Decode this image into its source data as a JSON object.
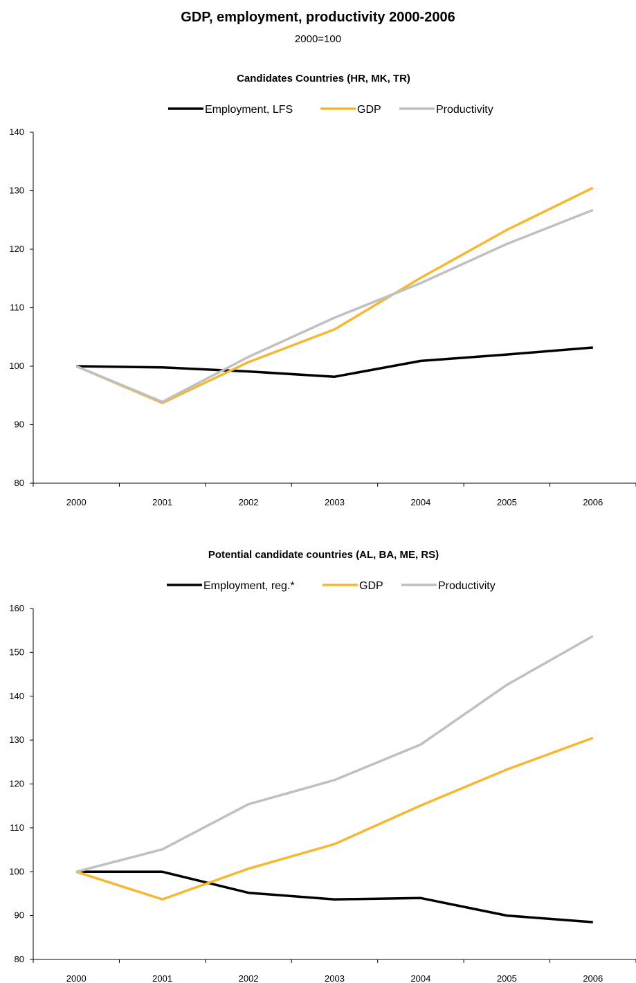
{
  "title": "GDP, employment, productivity 2000-2006",
  "subtitle": "2000=100",
  "colors": {
    "employment": "#000000",
    "gdp": "#f7b731",
    "productivity": "#c0c0c0"
  },
  "chart_data": [
    {
      "type": "line",
      "title": "Candidates Countries (HR, MK, TR)",
      "x": [
        "2000",
        "2001",
        "2002",
        "2003",
        "2004",
        "2005",
        "2006"
      ],
      "ylim": [
        80,
        140
      ],
      "yticks": [
        80,
        90,
        100,
        110,
        120,
        130,
        140
      ],
      "legend_position": "top-center",
      "grid": false,
      "series": [
        {
          "name": "Employment, LFS",
          "color": "#000000",
          "values": [
            100,
            99.8,
            99.1,
            98.2,
            100.9,
            102.0,
            103.2
          ]
        },
        {
          "name": "GDP",
          "color": "#f7b731",
          "values": [
            100,
            93.7,
            100.7,
            106.3,
            115.1,
            123.3,
            130.5
          ]
        },
        {
          "name": "Productivity",
          "color": "#c0c0c0",
          "values": [
            100,
            93.9,
            101.6,
            108.3,
            114.2,
            120.9,
            126.7
          ]
        }
      ]
    },
    {
      "type": "line",
      "title": "Potential candidate countries (AL, BA, ME, RS)",
      "x": [
        "2000",
        "2001",
        "2002",
        "2003",
        "2004",
        "2005",
        "2006"
      ],
      "ylim": [
        80,
        160
      ],
      "yticks": [
        80,
        90,
        100,
        110,
        120,
        130,
        140,
        150,
        160
      ],
      "legend_position": "top-center",
      "grid": false,
      "series": [
        {
          "name": "Employment, reg.*",
          "color": "#000000",
          "values": [
            100,
            100,
            95.2,
            93.7,
            94.0,
            90.0,
            88.5
          ]
        },
        {
          "name": "GDP",
          "color": "#f7b731",
          "values": [
            100,
            93.7,
            100.7,
            106.3,
            115.1,
            123.3,
            130.5
          ]
        },
        {
          "name": "Productivity",
          "color": "#c0c0c0",
          "values": [
            100,
            105.1,
            115.4,
            120.9,
            129.0,
            142.6,
            153.7
          ]
        }
      ]
    }
  ]
}
